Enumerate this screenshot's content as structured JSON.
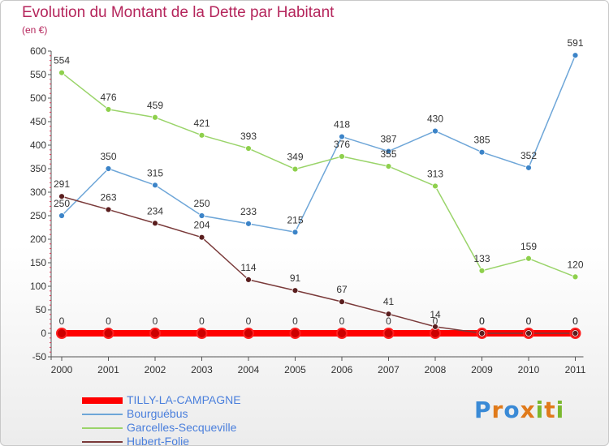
{
  "title": "Evolution du Montant de la Dette par Habitant",
  "unit": "(en €)",
  "logo_text": "Proxiti",
  "chart_data": {
    "type": "line",
    "title": "Evolution du Montant de la Dette par Habitant",
    "ylabel": "(en €)",
    "xlabel": "",
    "x": [
      "2000",
      "2001",
      "2002",
      "2003",
      "2004",
      "2005",
      "2006",
      "2007",
      "2008",
      "2009",
      "2010",
      "2011"
    ],
    "ylim": [
      -50,
      600
    ],
    "yticks": [
      -50,
      0,
      50,
      100,
      150,
      200,
      250,
      300,
      350,
      400,
      450,
      500,
      550,
      600
    ],
    "grid": false,
    "legend_position": "bottom-left",
    "series": [
      {
        "name": "TILLY-LA-CAMPAGNE",
        "color": "#ff0000",
        "values": [
          0,
          0,
          0,
          0,
          0,
          0,
          0,
          0,
          0,
          0,
          0,
          0
        ],
        "labels": [
          "0",
          "0",
          "0",
          "0",
          "0",
          "0",
          "0",
          "0",
          "0",
          "0",
          "0",
          "0"
        ]
      },
      {
        "name": "Bourguébus",
        "color": "#6ea6d8",
        "values": [
          250,
          350,
          315,
          250,
          233,
          215,
          418,
          387,
          430,
          385,
          352,
          591
        ],
        "labels": [
          "250",
          "350",
          "315",
          "250",
          "233",
          "215",
          "418",
          "387",
          "430",
          "385",
          "352",
          "591"
        ]
      },
      {
        "name": "Garcelles-Secqueville",
        "color": "#9ad46a",
        "values": [
          554,
          476,
          459,
          421,
          393,
          349,
          376,
          355,
          313,
          133,
          159,
          120
        ],
        "labels": [
          "554",
          "476",
          "459",
          "421",
          "393",
          "349",
          "376",
          "355",
          "313",
          "133",
          "159",
          "120"
        ]
      },
      {
        "name": "Hubert-Folie",
        "color": "#7a3a3a",
        "values": [
          291,
          263,
          234,
          204,
          114,
          91,
          67,
          41,
          14,
          0,
          0,
          0
        ],
        "labels": [
          "291",
          "263",
          "234",
          "204",
          "114",
          "91",
          "67",
          "41",
          "14",
          "0",
          "0",
          "0"
        ]
      }
    ]
  }
}
